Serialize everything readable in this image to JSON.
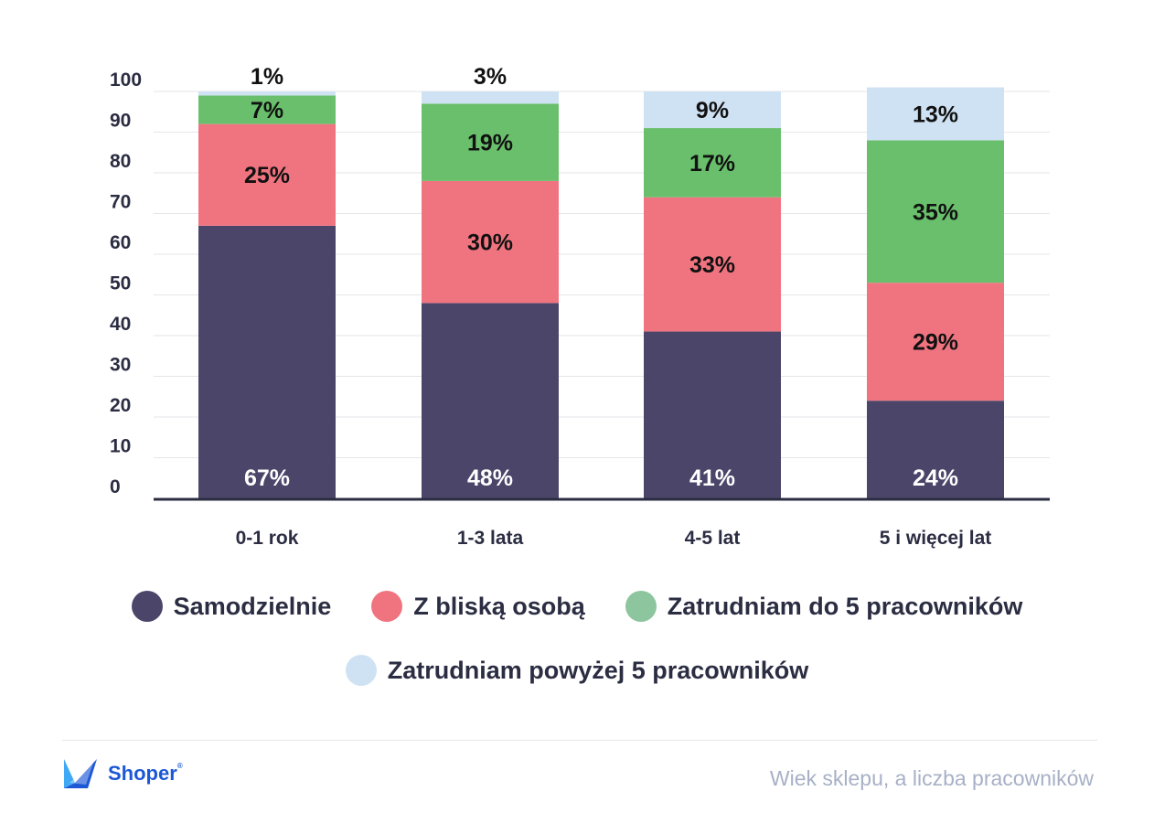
{
  "chart_data": {
    "type": "bar",
    "stacked": true,
    "categories": [
      "0-1 rok",
      "1-3 lata",
      "4-5 lat",
      "5 i więcej lat"
    ],
    "series": [
      {
        "name": "Samodzielnie",
        "values": [
          67,
          48,
          41,
          24
        ],
        "labels": [
          "67%",
          "48%",
          "41%",
          "24%"
        ],
        "color": "#4a4569"
      },
      {
        "name": "Z bliską osobą",
        "values": [
          25,
          30,
          33,
          29
        ],
        "labels": [
          "25%",
          "30%",
          "33%",
          "29%"
        ],
        "color": "#f07480"
      },
      {
        "name": "Zatrudniam do 5 pracowników",
        "values": [
          7,
          19,
          17,
          35
        ],
        "labels": [
          "7%",
          "19%",
          "17%",
          "35%"
        ],
        "color": "#69bf6b"
      },
      {
        "name": "Zatrudniam powyżej 5 pracowników",
        "values": [
          1,
          3,
          9,
          13
        ],
        "labels": [
          "1%",
          "3%",
          "9%",
          "13%"
        ],
        "color": "#cfe2f3"
      }
    ],
    "yticks": [
      "0",
      "10",
      "20",
      "30",
      "40",
      "50",
      "60",
      "70",
      "80",
      "90",
      "100"
    ],
    "ylim": [
      0,
      100
    ],
    "grid": true,
    "legend_position": "bottom",
    "legend_dot_colors": [
      "#4a4569",
      "#f07480",
      "#8cc59e",
      "#cfe2f3"
    ]
  },
  "footer": {
    "brand": "Shoper",
    "brand_mark": "®",
    "caption": "Wiek sklepu, a liczba pracowników"
  }
}
